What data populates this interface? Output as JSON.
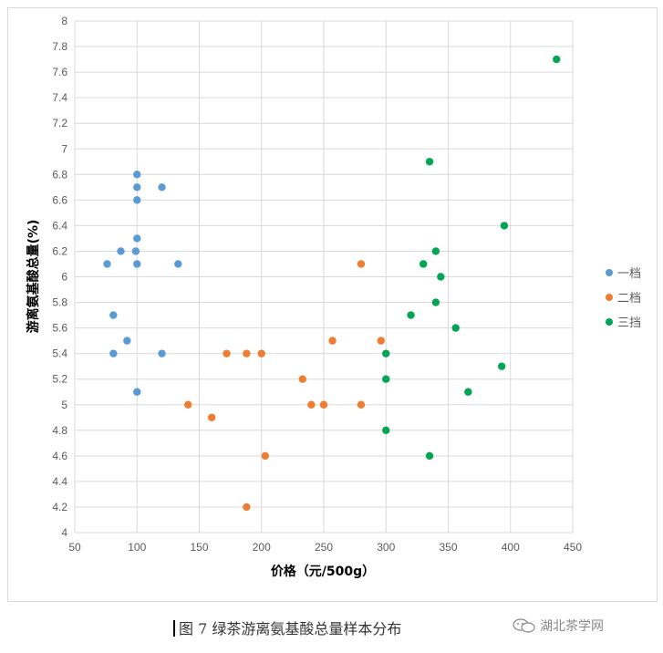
{
  "chart_data": {
    "type": "scatter",
    "xlabel": "价格（元/500g）",
    "ylabel": "游离氨基酸总量(%)",
    "xlim": [
      50,
      450
    ],
    "ylim": [
      4,
      8
    ],
    "xticks": [
      "50",
      "100",
      "150",
      "200",
      "250",
      "300",
      "350",
      "400",
      "450"
    ],
    "yticks": [
      "4",
      "4.2",
      "4.4",
      "4.6",
      "4.8",
      "5",
      "5.2",
      "5.4",
      "5.6",
      "5.8",
      "6",
      "6.2",
      "6.4",
      "6.6",
      "6.8",
      "7",
      "7.2",
      "7.4",
      "7.6",
      "7.8",
      "8"
    ],
    "grid": true,
    "legend_position": "right",
    "series": [
      {
        "name": "一档",
        "color": "#5b9bd5",
        "points": [
          [
            76,
            6.1
          ],
          [
            81,
            5.7
          ],
          [
            81,
            5.4
          ],
          [
            87,
            6.2
          ],
          [
            92,
            5.5
          ],
          [
            99,
            6.2
          ],
          [
            100,
            6.8
          ],
          [
            100,
            6.7
          ],
          [
            100,
            6.6
          ],
          [
            100,
            6.3
          ],
          [
            100,
            6.1
          ],
          [
            100,
            5.1
          ],
          [
            120,
            6.7
          ],
          [
            120,
            5.4
          ],
          [
            133,
            6.1
          ]
        ]
      },
      {
        "name": "二档",
        "color": "#ed7d31",
        "points": [
          [
            141,
            5.0
          ],
          [
            160,
            4.9
          ],
          [
            172,
            5.4
          ],
          [
            188,
            5.4
          ],
          [
            188,
            4.2
          ],
          [
            200,
            5.4
          ],
          [
            203,
            4.6
          ],
          [
            233,
            5.2
          ],
          [
            240,
            5.0
          ],
          [
            250,
            5.0
          ],
          [
            257,
            5.5
          ],
          [
            280,
            6.1
          ],
          [
            280,
            5.0
          ],
          [
            296,
            5.5
          ]
        ]
      },
      {
        "name": "三挡",
        "color": "#00a651",
        "points": [
          [
            300,
            5.4
          ],
          [
            300,
            5.2
          ],
          [
            300,
            4.8
          ],
          [
            320,
            5.7
          ],
          [
            330,
            6.1
          ],
          [
            335,
            6.9
          ],
          [
            335,
            4.6
          ],
          [
            340,
            6.2
          ],
          [
            340,
            5.8
          ],
          [
            344,
            6.0
          ],
          [
            356,
            5.6
          ],
          [
            366,
            5.1
          ],
          [
            393,
            5.3
          ],
          [
            395,
            6.4
          ],
          [
            437,
            7.7
          ]
        ]
      }
    ]
  },
  "caption": {
    "text": "图 7  绿茶游离氨基酸总量样本分布"
  },
  "watermark": {
    "text": "湖北茶学网",
    "icon": "wechat-icon"
  }
}
